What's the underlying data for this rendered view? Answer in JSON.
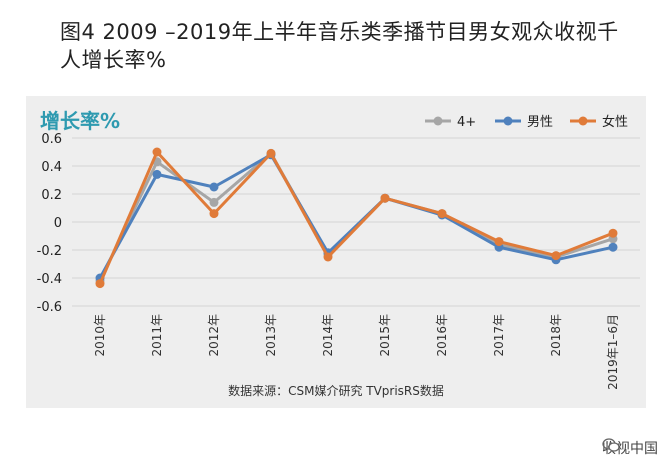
{
  "chart_data": {
    "type": "line",
    "title": "图4  2009  –2019年上半年音乐类季播节目男女观众收视千人增长率%",
    "ylabel": "增长率%",
    "xlabel": "",
    "categories": [
      "2010年",
      "2011年",
      "2012年",
      "2013年",
      "2014年",
      "2015年",
      "2016年",
      "2017年",
      "2018年",
      "2019年1–6月"
    ],
    "yticks": [
      "0.6",
      "0.4",
      "0.2",
      "0",
      "-0.2",
      "-0.4",
      "-0.6"
    ],
    "ylim": [
      -0.6,
      0.6
    ],
    "legend_position": "top-right",
    "series": [
      {
        "name": "4+",
        "color": "#a6a6a6",
        "values": [
          -0.42,
          0.43,
          0.14,
          0.49,
          -0.23,
          0.17,
          0.06,
          -0.16,
          -0.25,
          -0.12
        ]
      },
      {
        "name": "男性",
        "color": "#4f81bd",
        "values": [
          -0.4,
          0.34,
          0.25,
          0.48,
          -0.22,
          0.17,
          0.05,
          -0.18,
          -0.27,
          -0.18
        ]
      },
      {
        "name": "女性",
        "color": "#e07b39",
        "values": [
          -0.44,
          0.5,
          0.06,
          0.49,
          -0.25,
          0.17,
          0.06,
          -0.14,
          -0.24,
          -0.08
        ]
      }
    ]
  },
  "source": "数据来源：CSM媒介研究  TVprisRS数据",
  "watermark": {
    "icon": "wechat-icon",
    "text": "收视中国"
  },
  "colors": {
    "ylabel": "#2e9ab0",
    "panel": "#eeeeee"
  }
}
